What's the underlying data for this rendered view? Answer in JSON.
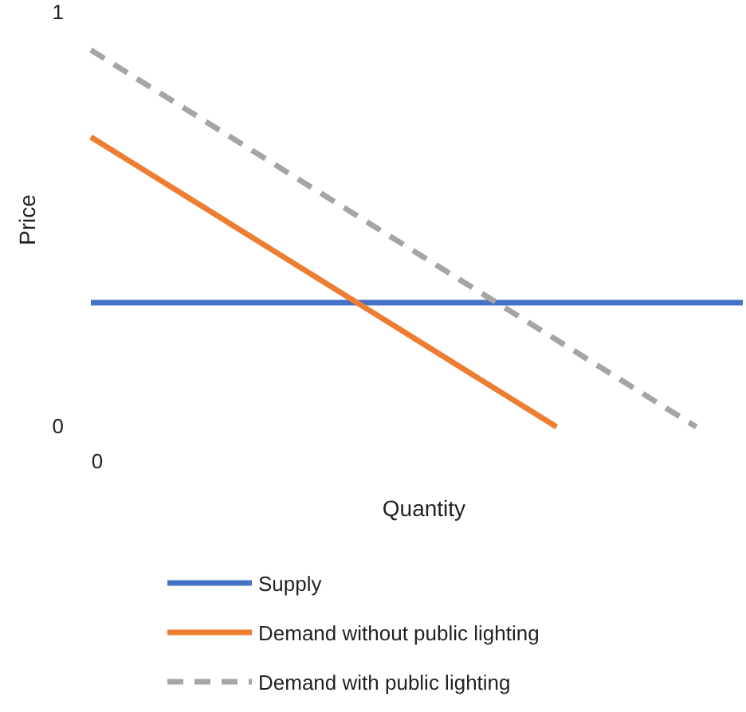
{
  "chart_data": {
    "type": "line",
    "xlabel": "Quantity",
    "ylabel": "Price",
    "categories": [
      "0",
      null,
      null,
      null,
      null,
      null,
      null,
      null,
      null,
      null,
      null,
      null,
      null,
      null,
      null
    ],
    "ylim": [
      0,
      1
    ],
    "yticks": [
      0,
      1
    ],
    "grid": false,
    "legend": "bottom",
    "marker": "none",
    "series": [
      {
        "name": "Supply",
        "color": "#4472c4",
        "line_style": "solid",
        "values": [
          0.3,
          0.3,
          0.3,
          0.3,
          0.3,
          0.3,
          0.3,
          0.3,
          0.3,
          0.3,
          0.3,
          0.3,
          0.3,
          0.3,
          0.3
        ]
      },
      {
        "name": "Demand without public lighting",
        "color": "#ed7d31",
        "line_style": "solid",
        "values": [
          0.7,
          0.63,
          0.56,
          0.49,
          0.42,
          0.35,
          0.28,
          0.21,
          0.14,
          0.07,
          0,
          null,
          null,
          null,
          null
        ]
      },
      {
        "name": "Demand with public lighting",
        "color": "#a5a5a5",
        "line_style": "dashed",
        "values": [
          0.91,
          0.84,
          0.77,
          0.7,
          0.63,
          0.56,
          0.49,
          0.42,
          0.35,
          0.28,
          0.21,
          0.14,
          0.07,
          0,
          null
        ]
      }
    ]
  }
}
